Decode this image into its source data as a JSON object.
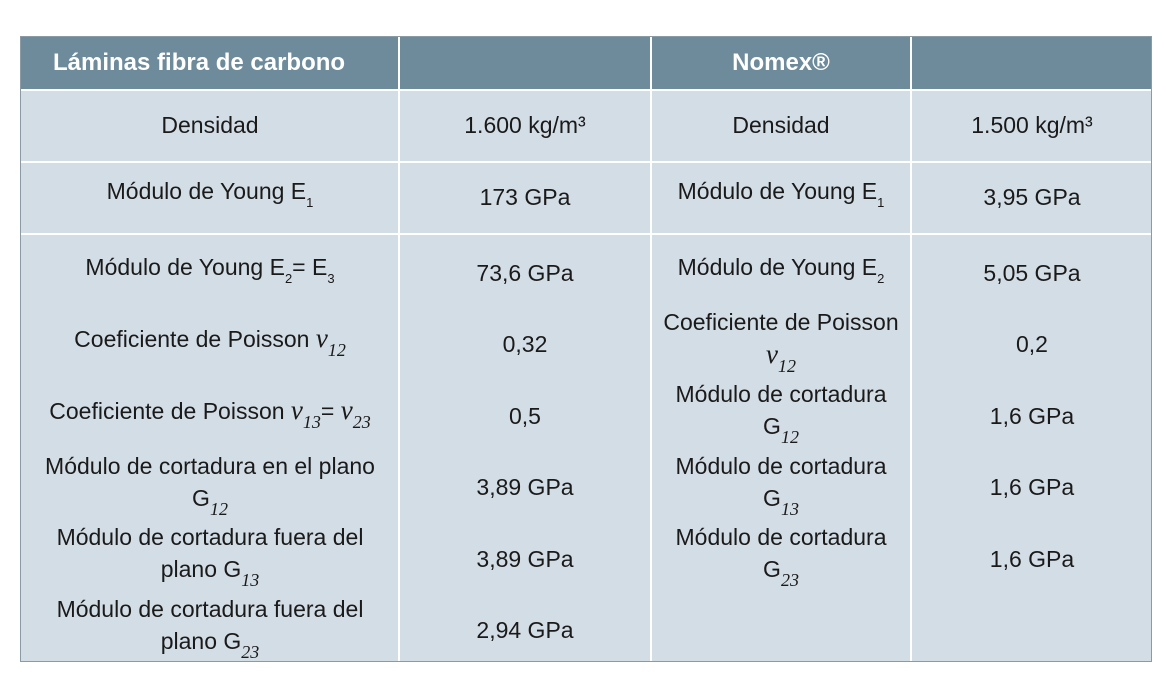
{
  "header": {
    "left_title": "Láminas fibra de carbono",
    "right_title": "Nomex®"
  },
  "rows": [
    {
      "left": [
        [
          "Densidad"
        ],
        [
          "1.600 kg/m³"
        ]
      ],
      "right": [
        [
          "Densidad"
        ],
        [
          "1.500 kg/m³"
        ]
      ]
    },
    {
      "left": [
        [
          "Módulo de Young E",
          {
            "sub": "1"
          }
        ],
        [
          "173 GPa"
        ]
      ],
      "right": [
        [
          "Módulo de Young E",
          {
            "sub": "1"
          }
        ],
        [
          "3,95 GPa"
        ]
      ]
    }
  ],
  "block": {
    "left": [
      [
        [
          "Módulo de Young E",
          {
            "sub": "2"
          },
          "= E",
          {
            "sub": "3"
          }
        ],
        [
          "73,6 GPa"
        ]
      ],
      [
        [
          "Coeficiente de Poisson ",
          {
            "var": "v"
          },
          {
            "isub": "12"
          }
        ],
        [
          "0,32"
        ]
      ],
      [
        [
          "Coeficiente de Poisson ",
          {
            "var": "v"
          },
          {
            "isub": "13"
          },
          "= ",
          {
            "var": "v"
          },
          {
            "isub": "23"
          }
        ],
        [
          "0,5"
        ]
      ],
      [
        [
          "Módulo de cortadura en el plano G",
          {
            "isub": "12"
          }
        ],
        [
          "3,89 GPa"
        ]
      ],
      [
        [
          "Módulo de cortadura fuera del plano G",
          {
            "isub": "13"
          }
        ],
        [
          "3,89 GPa"
        ]
      ],
      [
        [
          "Módulo de cortadura fuera del plano G",
          {
            "isub": "23"
          }
        ],
        [
          "2,94 GPa"
        ]
      ]
    ],
    "right": [
      [
        [
          "Módulo de Young E",
          {
            "sub": "2"
          }
        ],
        [
          "5,05 GPa"
        ]
      ],
      [
        [
          "Coeficiente de Poisson ",
          {
            "var": "v"
          },
          {
            "isub": "12"
          }
        ],
        [
          "0,2"
        ]
      ],
      [
        [
          "Módulo de cortadura G",
          {
            "isub": "12"
          }
        ],
        [
          "1,6 GPa"
        ]
      ],
      [
        [
          "Módulo de cortadura G",
          {
            "isub": "13"
          }
        ],
        [
          "1,6 GPa"
        ]
      ],
      [
        [
          "Módulo de cortadura G",
          {
            "isub": "23"
          }
        ],
        [
          "1,6 GPa"
        ]
      ]
    ]
  }
}
